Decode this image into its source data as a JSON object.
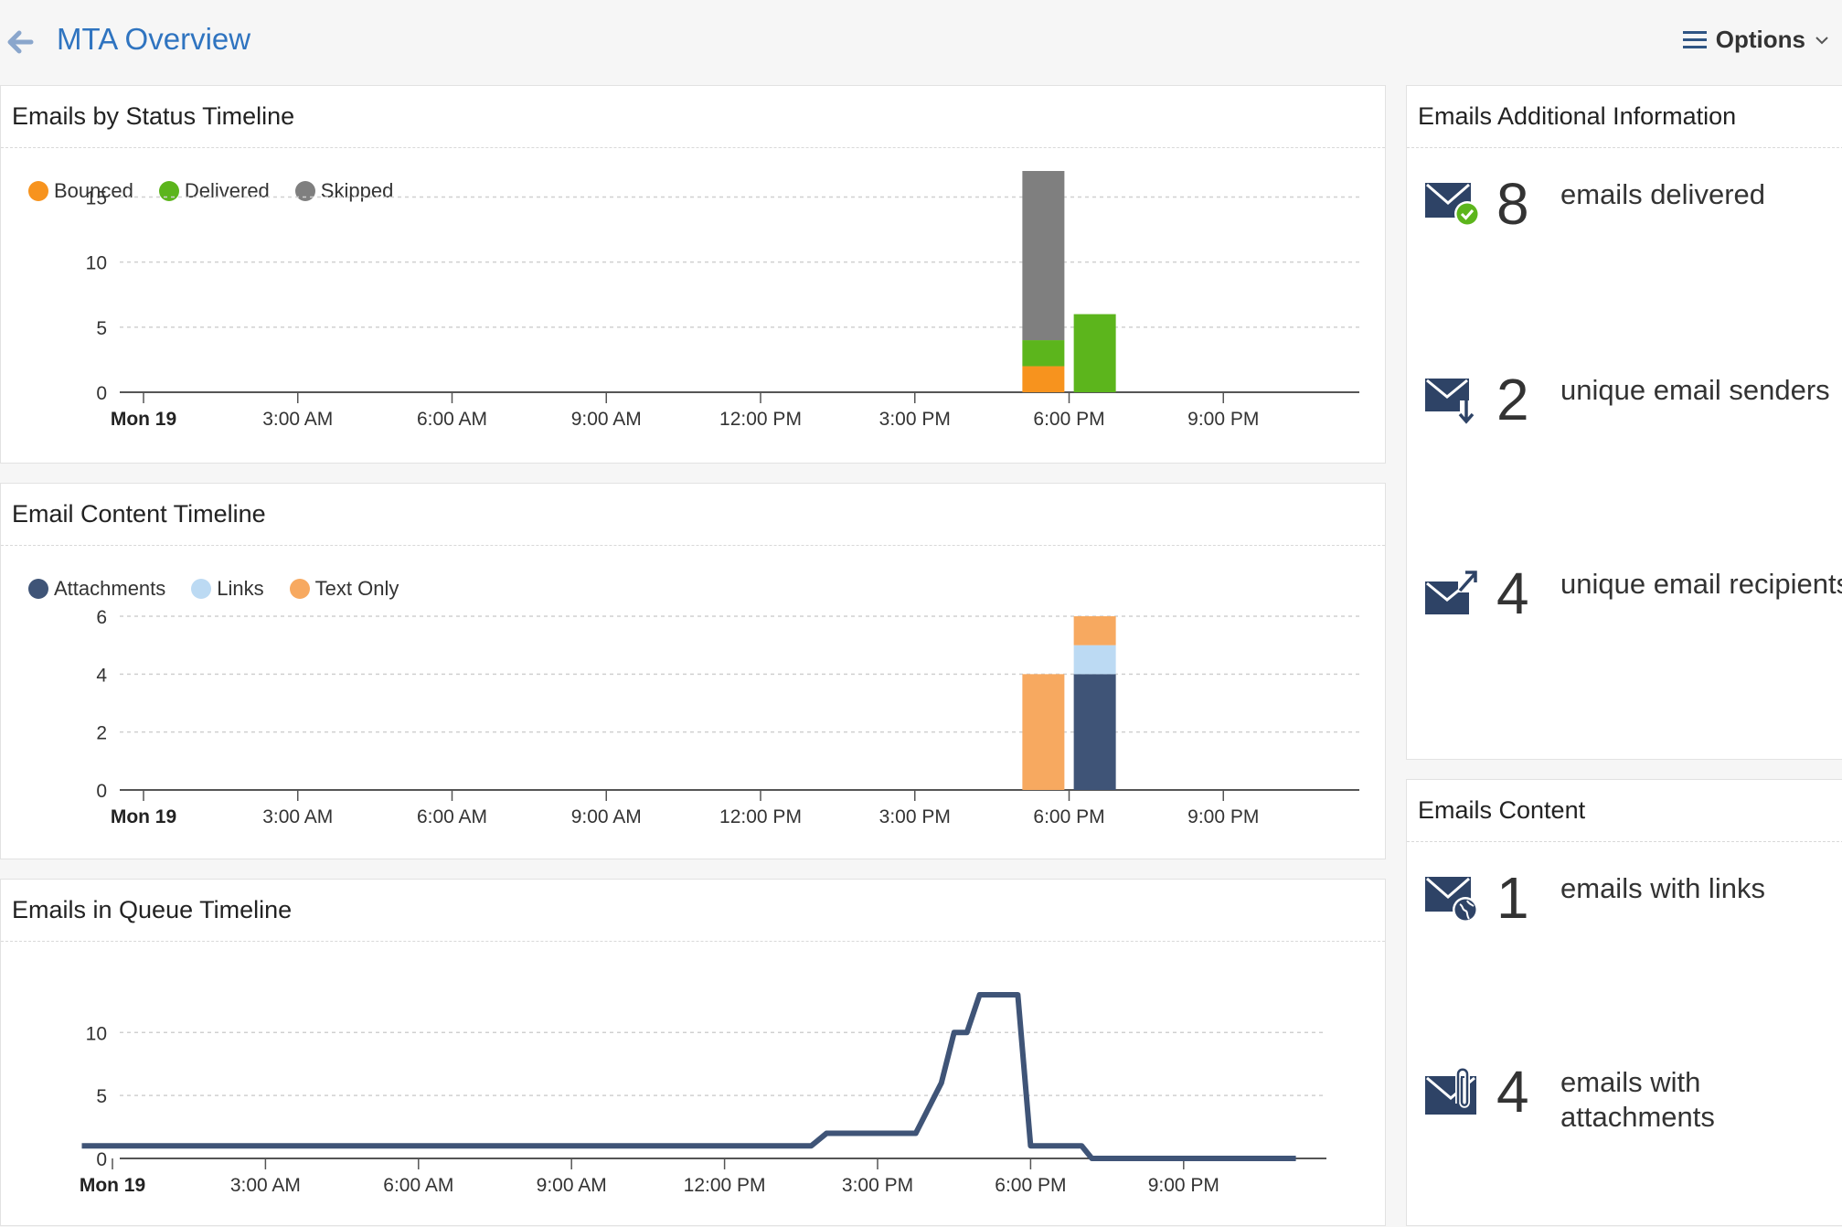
{
  "header": {
    "title": "MTA Overview",
    "options_label": "Options"
  },
  "panels": {
    "status": {
      "title": "Emails by Status Timeline",
      "legend": [
        {
          "label": "Bounced",
          "color": "#f7931e"
        },
        {
          "label": "Delivered",
          "color": "#5cb51c"
        },
        {
          "label": "Skipped",
          "color": "#7f7f7f"
        }
      ]
    },
    "content": {
      "title": "Email Content Timeline",
      "legend": [
        {
          "label": "Attachments",
          "color": "#3f5477"
        },
        {
          "label": "Links",
          "color": "#bcdaf3"
        },
        {
          "label": "Text Only",
          "color": "#f7a960"
        }
      ]
    },
    "queue": {
      "title": "Emails in Queue Timeline"
    },
    "info": {
      "title": "Emails Additional Information",
      "stats": [
        {
          "value": "8",
          "label": "emails delivered",
          "icon": "mail-check-icon"
        },
        {
          "value": "2",
          "label": "unique email senders",
          "icon": "mail-incoming-icon"
        },
        {
          "value": "4",
          "label": "unique email recipients",
          "icon": "mail-outgoing-icon"
        }
      ]
    },
    "emailcontent": {
      "title": "Emails Content",
      "stats": [
        {
          "value": "1",
          "label": "emails with links",
          "icon": "mail-globe-icon"
        },
        {
          "value": "4",
          "label": "emails with attachments",
          "icon": "mail-attachment-icon"
        }
      ]
    }
  },
  "chart_data": [
    {
      "type": "bar",
      "title": "Emails by Status Timeline",
      "x_ticks": [
        "Mon 19",
        "3:00 AM",
        "6:00 AM",
        "9:00 AM",
        "12:00 PM",
        "3:00 PM",
        "6:00 PM",
        "9:00 PM"
      ],
      "y_ticks": [
        0,
        5,
        10,
        15
      ],
      "ylim": [
        0,
        17
      ],
      "stacked": true,
      "bars": [
        {
          "x_hour": 17.5,
          "segments": [
            {
              "series": "Bounced",
              "value": 2
            },
            {
              "series": "Delivered",
              "value": 2
            },
            {
              "series": "Skipped",
              "value": 13
            }
          ]
        },
        {
          "x_hour": 18.5,
          "segments": [
            {
              "series": "Delivered",
              "value": 6
            }
          ]
        }
      ],
      "legend_position": "top-left",
      "grid": true
    },
    {
      "type": "bar",
      "title": "Email Content Timeline",
      "x_ticks": [
        "Mon 19",
        "3:00 AM",
        "6:00 AM",
        "9:00 AM",
        "12:00 PM",
        "3:00 PM",
        "6:00 PM",
        "9:00 PM"
      ],
      "y_ticks": [
        0,
        2,
        4,
        6
      ],
      "ylim": [
        0,
        6
      ],
      "stacked": true,
      "bars": [
        {
          "x_hour": 17.5,
          "segments": [
            {
              "series": "Text Only",
              "value": 4
            }
          ]
        },
        {
          "x_hour": 18.5,
          "segments": [
            {
              "series": "Attachments",
              "value": 4
            },
            {
              "series": "Links",
              "value": 1
            },
            {
              "series": "Text Only",
              "value": 1
            }
          ]
        }
      ],
      "legend_position": "top-left",
      "grid": true
    },
    {
      "type": "line",
      "title": "Emails in Queue Timeline",
      "x_ticks": [
        "Mon 19",
        "3:00 AM",
        "6:00 AM",
        "9:00 AM",
        "12:00 PM",
        "3:00 PM",
        "6:00 PM",
        "9:00 PM"
      ],
      "y_ticks": [
        0,
        5,
        10
      ],
      "ylim": [
        0,
        13
      ],
      "series": [
        {
          "color": "#3f5477",
          "points": [
            [
              -0.6,
              1
            ],
            [
              13.7,
              1
            ],
            [
              14,
              2
            ],
            [
              15.75,
              2
            ],
            [
              16.25,
              6
            ],
            [
              16.5,
              10
            ],
            [
              16.75,
              10
            ],
            [
              17,
              13
            ],
            [
              17.75,
              13
            ],
            [
              18,
              1
            ],
            [
              19,
              1
            ],
            [
              19.2,
              0
            ],
            [
              23.2,
              0
            ]
          ]
        }
      ],
      "grid": true
    }
  ]
}
